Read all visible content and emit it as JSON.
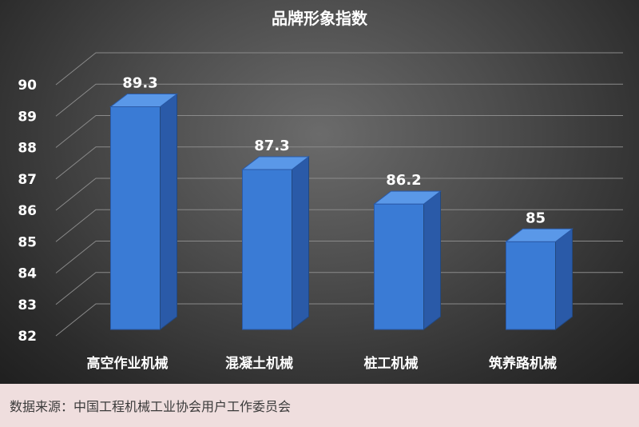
{
  "chart_data": {
    "type": "bar",
    "title": "品牌形象指数",
    "categories": [
      "高空作业机械",
      "混凝土机械",
      "桩工机械",
      "筑养路机械"
    ],
    "values": [
      89.3,
      87.3,
      86.2,
      85
    ],
    "value_labels": [
      "89.3",
      "87.3",
      "86.2",
      "85"
    ],
    "ylim": [
      82,
      90
    ],
    "yticks": [
      "82",
      "83",
      "84",
      "85",
      "86",
      "87",
      "88",
      "89",
      "90"
    ],
    "xlabel": "",
    "ylabel": "",
    "grid": true,
    "style": "3d",
    "bar_color": "#3a7bd5"
  },
  "footer": {
    "source": "数据来源：中国工程机械工业协会用户工作委员会"
  }
}
